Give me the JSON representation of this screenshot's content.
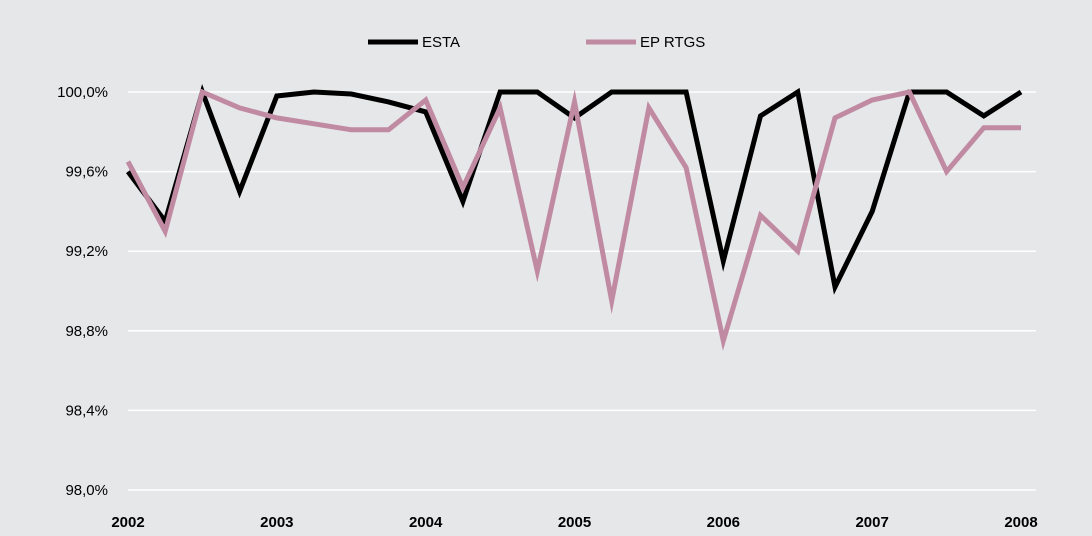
{
  "chart_data": {
    "type": "line",
    "title": "",
    "xlabel": "",
    "ylabel": "",
    "x_tick_labels": [
      "2002",
      "2003",
      "2004",
      "2005",
      "2006",
      "2007",
      "2008"
    ],
    "y_tick_labels": [
      "98,0%",
      "98,4%",
      "98,8%",
      "99,2%",
      "99,6%",
      "100,0%"
    ],
    "ylim": [
      98.0,
      100.0
    ],
    "grid": true,
    "legend_position": "top-center",
    "x": [
      2002.0,
      2002.25,
      2002.5,
      2002.75,
      2003.0,
      2003.25,
      2003.5,
      2003.75,
      2004.0,
      2004.25,
      2004.5,
      2004.75,
      2005.0,
      2005.25,
      2005.5,
      2005.75,
      2006.0,
      2006.25,
      2006.5,
      2006.75,
      2007.0,
      2007.25,
      2007.5,
      2007.75,
      2008.0
    ],
    "series": [
      {
        "name": "ESTA",
        "color": "#000000",
        "values": [
          99.6,
          99.35,
          100.0,
          99.5,
          99.98,
          100.0,
          99.99,
          99.95,
          99.9,
          99.45,
          100.0,
          100.0,
          99.87,
          100.0,
          100.0,
          100.0,
          99.15,
          99.88,
          100.0,
          99.02,
          99.4,
          100.0,
          100.0,
          99.88,
          100.0
        ]
      },
      {
        "name": "EP RTGS",
        "color": "#c08aa3",
        "values": [
          99.65,
          99.3,
          100.0,
          99.92,
          99.87,
          99.84,
          99.81,
          99.81,
          99.96,
          99.52,
          99.92,
          99.1,
          99.95,
          98.95,
          99.92,
          99.62,
          98.75,
          99.38,
          99.2,
          99.87,
          99.96,
          100.0,
          99.6,
          99.82,
          99.82
        ]
      }
    ]
  }
}
